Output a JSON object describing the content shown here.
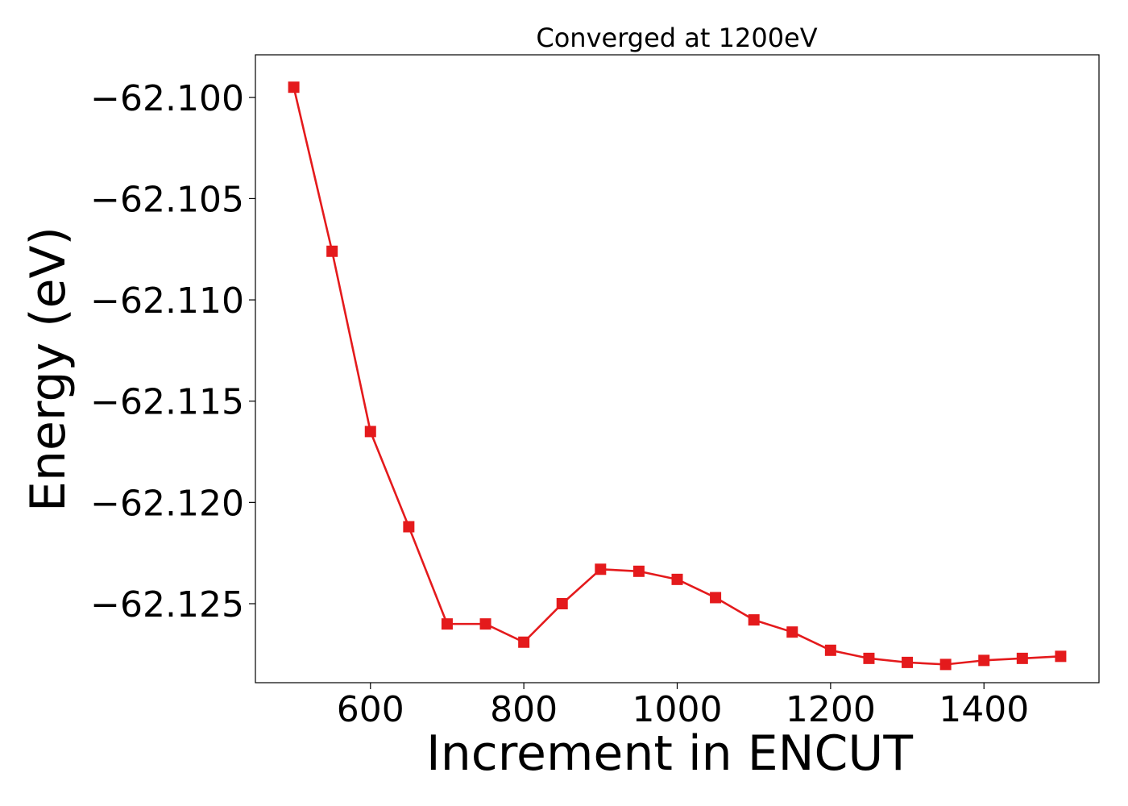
{
  "chart_data": {
    "type": "line",
    "title": "Converged at 1200eV",
    "xlabel": "Increment in ENCUT",
    "ylabel": "Energy (eV)",
    "xlim": [
      450,
      1550
    ],
    "ylim": [
      -62.1289,
      -62.0979
    ],
    "xticks": [
      600,
      800,
      1000,
      1200,
      1400
    ],
    "xtick_labels": [
      "600",
      "800",
      "1000",
      "1200",
      "1400"
    ],
    "yticks": [
      -62.1,
      -62.105,
      -62.11,
      -62.115,
      -62.12,
      -62.125
    ],
    "ytick_labels": [
      "−62.100",
      "−62.105",
      "−62.110",
      "−62.115",
      "−62.120",
      "−62.125"
    ],
    "grid": false,
    "legend": false,
    "marker": "square",
    "color": "#e41a1c",
    "series": [
      {
        "x": [
          500,
          550,
          600,
          650,
          700,
          750,
          800,
          850,
          900,
          950,
          1000,
          1050,
          1100,
          1150,
          1200,
          1250,
          1300,
          1350,
          1400,
          1450,
          1500
        ],
        "y": [
          -62.0995,
          -62.1076,
          -62.1165,
          -62.1212,
          -62.126,
          -62.126,
          -62.1269,
          -62.125,
          -62.1233,
          -62.1234,
          -62.1238,
          -62.1247,
          -62.1258,
          -62.1264,
          -62.1273,
          -62.1277,
          -62.1279,
          -62.128,
          -62.1278,
          -62.1277,
          -62.1276
        ]
      }
    ]
  }
}
